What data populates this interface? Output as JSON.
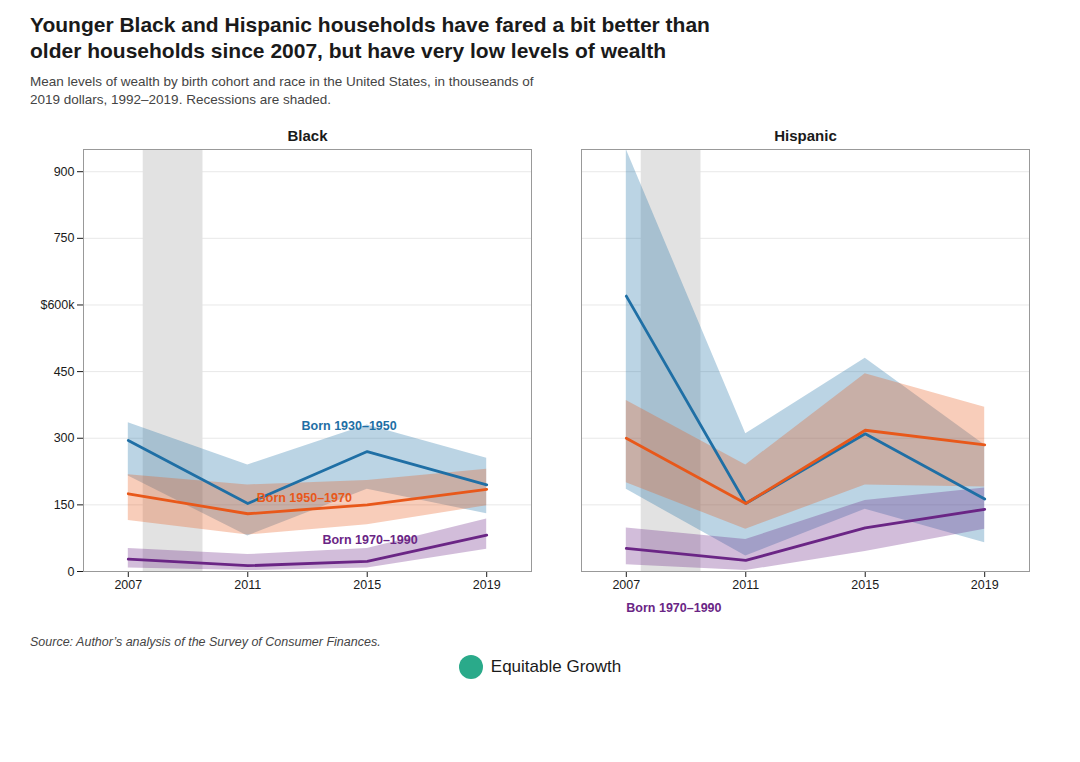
{
  "chart_data": {
    "type": "line",
    "title": "Younger Black and Hispanic households have fared a bit better than\nolder households since 2007, but have very low levels of wealth",
    "subtitle": "Mean levels of wealth by birth cohort and race in the United States, in thouseands of\n2019 dollars, 1992–2019. Recessions are shaded.",
    "source": "Source: Author’s analysis of the Survey of Consumer Finances.",
    "credit": "Equitable Growth",
    "x": [
      2007,
      2011,
      2015,
      2019
    ],
    "xlim": [
      2005.5,
      2020.5
    ],
    "xticks": [
      2007,
      2011,
      2015,
      2019
    ],
    "ylim": [
      0,
      950
    ],
    "yticks": [
      0,
      150,
      300,
      450,
      {
        "value": 600,
        "label": "$600k"
      },
      750,
      900
    ],
    "grid": true,
    "recession": {
      "start": 2007.5,
      "end": 2009.5,
      "color": "#e2e2e2"
    },
    "panels": [
      {
        "title": "Black",
        "series": [
          {
            "name": "Born 1930–1950",
            "color": "#1f6fa5",
            "values": [
              295,
              153,
              270,
              195
            ],
            "lo": [
              215,
              80,
              185,
              130
            ],
            "hi": [
              335,
              240,
              330,
              255
            ]
          },
          {
            "name": "Born 1950–1970",
            "color": "#e8581a",
            "values": [
              175,
              130,
              150,
              185
            ],
            "lo": [
              115,
              82,
              105,
              148
            ],
            "hi": [
              218,
              195,
              205,
              230
            ]
          },
          {
            "name": "Born 1970–1990",
            "color": "#6a2585",
            "values": [
              28,
              13,
              23,
              82
            ],
            "lo": [
              8,
              2,
              8,
              50
            ],
            "hi": [
              52,
              38,
              52,
              118
            ]
          }
        ]
      },
      {
        "title": "Hispanic",
        "series": [
          {
            "name": "Born 1930–1950",
            "color": "#1f6fa5",
            "values": [
              620,
              153,
              310,
              163
            ],
            "lo": [
              185,
              35,
              140,
              65
            ],
            "hi": [
              950,
              310,
              480,
              285
            ]
          },
          {
            "name": "Born 1950–1970",
            "color": "#e8581a",
            "values": [
              300,
              153,
              318,
              285
            ],
            "lo": [
              200,
              95,
              195,
              190
            ],
            "hi": [
              385,
              240,
              445,
              370
            ]
          },
          {
            "name": "Born 1970–1990",
            "color": "#6a2585",
            "values": [
              52,
              25,
              98,
              140
            ],
            "lo": [
              15,
              2,
              45,
              95
            ],
            "hi": [
              98,
              72,
              160,
              188
            ]
          }
        ]
      }
    ],
    "annotations": [
      {
        "panel": "Black",
        "text": "Born 1930–1950",
        "x": 2012.8,
        "y": 315,
        "color": "#1f6fa5"
      },
      {
        "panel": "Black",
        "text": "Born 1950–1970",
        "x": 2011.3,
        "y": 152,
        "color": "#e8581a"
      },
      {
        "panel": "Black",
        "text": "Born 1970–1990",
        "x": 2013.5,
        "y": 58,
        "color": "#6a2585"
      },
      {
        "panel": "Hispanic",
        "text": "Born 1970–1990",
        "x": 2007.0,
        "y": -30,
        "color": "#6a2585"
      }
    ]
  }
}
